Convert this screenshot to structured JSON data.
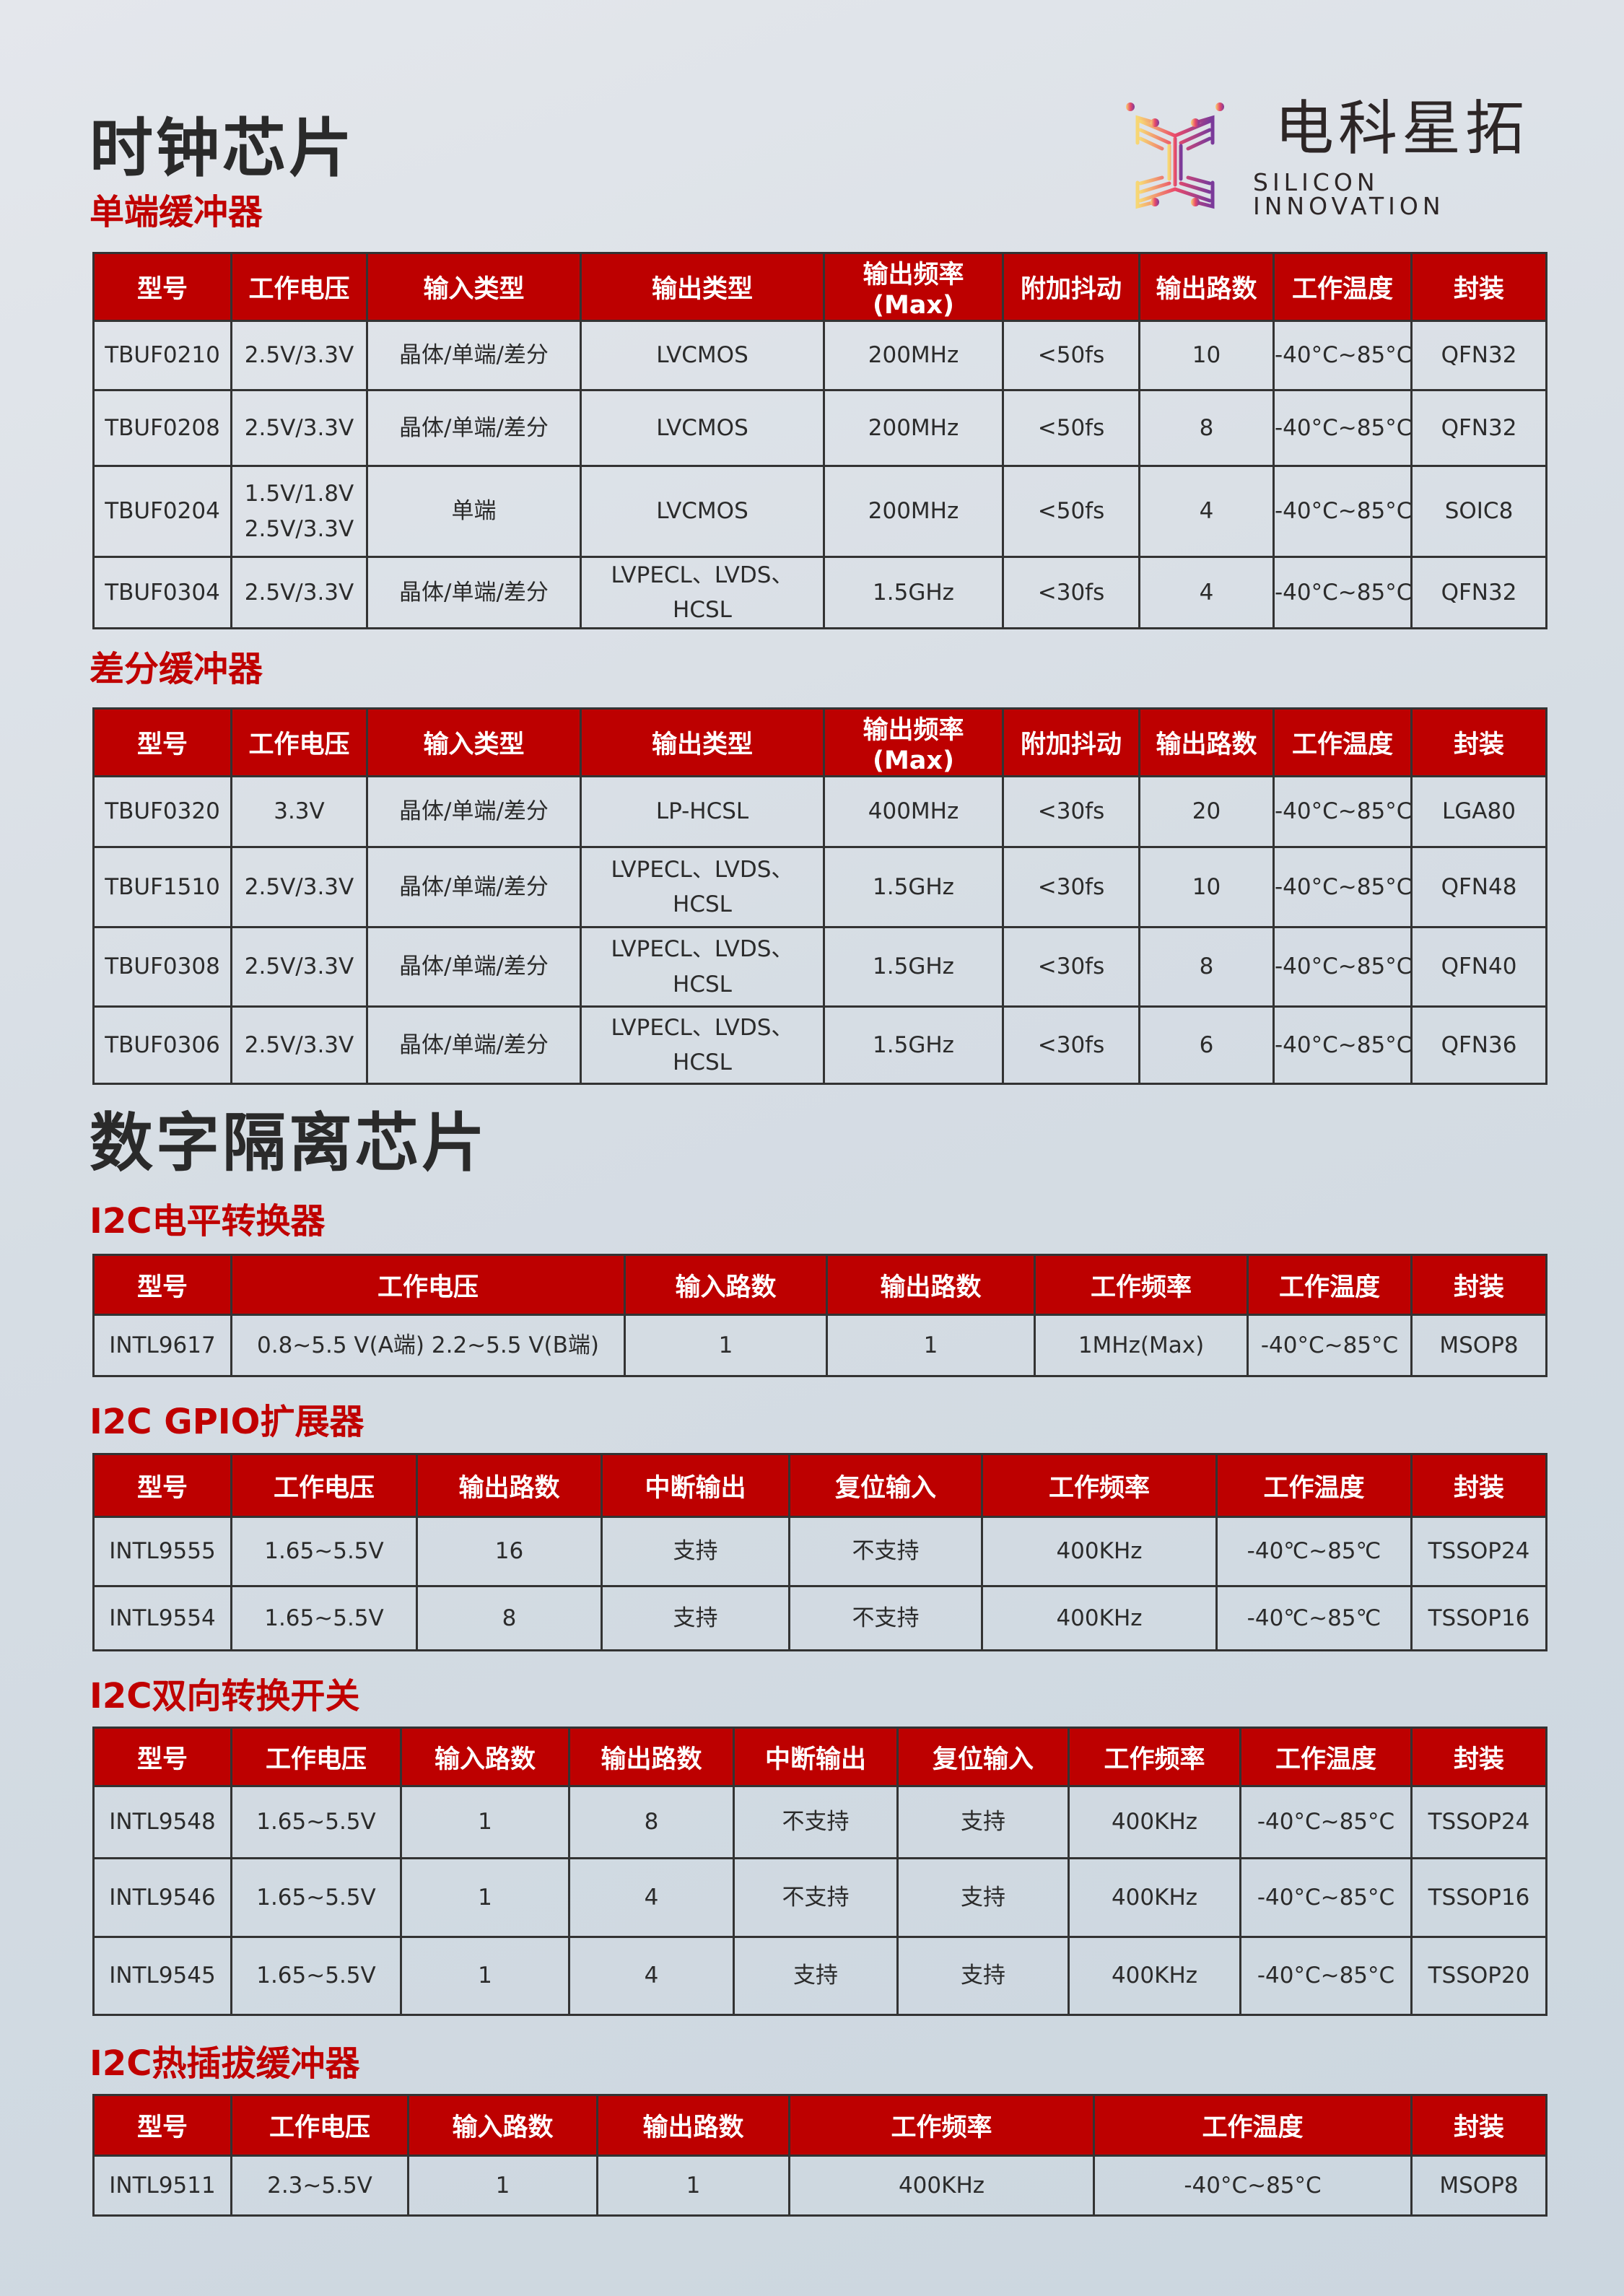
{
  "brand": {
    "name_cn": "电科星拓",
    "name_en": "SILICON INNOVATION",
    "gradient": [
      "#f7d774",
      "#ea4a6a",
      "#7a3a9a"
    ]
  },
  "colors": {
    "header_bg": "#bd0000",
    "section_title": "#c00000",
    "border": "#333333"
  },
  "sections": [
    {
      "title": "时钟芯片"
    },
    {
      "title": "数字隔离芯片"
    }
  ],
  "tables": [
    {
      "subtitle": "单端缓冲器",
      "headers": [
        "型号",
        "工作电压",
        "输入类型",
        "输出类型",
        "输出频率(Max)",
        "附加抖动",
        "输出路数",
        "工作温度",
        "封装"
      ],
      "rows": [
        [
          "TBUF0210",
          "2.5V/3.3V",
          "晶体/单端/差分",
          "LVCMOS",
          "200MHz",
          "<50fs",
          "10",
          "-40°C~85°C",
          "QFN32"
        ],
        [
          "TBUF0208",
          "2.5V/3.3V",
          "晶体/单端/差分",
          "LVCMOS",
          "200MHz",
          "<50fs",
          "8",
          "-40°C~85°C",
          "QFN32"
        ],
        [
          "TBUF0204",
          "1.5V/1.8V\n2.5V/3.3V",
          "单端",
          "LVCMOS",
          "200MHz",
          "<50fs",
          "4",
          "-40°C~85°C",
          "SOIC8"
        ],
        [
          "TBUF0304",
          "2.5V/3.3V",
          "晶体/单端/差分",
          "LVPECL、LVDS、HCSL",
          "1.5GHz",
          "<30fs",
          "4",
          "-40°C~85°C",
          "QFN32"
        ]
      ]
    },
    {
      "subtitle": "差分缓冲器",
      "headers": [
        "型号",
        "工作电压",
        "输入类型",
        "输出类型",
        "输出频率(Max)",
        "附加抖动",
        "输出路数",
        "工作温度",
        "封装"
      ],
      "rows": [
        [
          "TBUF0320",
          "3.3V",
          "晶体/单端/差分",
          "LP-HCSL",
          "400MHz",
          "<30fs",
          "20",
          "-40°C~85°C",
          "LGA80"
        ],
        [
          "TBUF1510",
          "2.5V/3.3V",
          "晶体/单端/差分",
          "LVPECL、LVDS、HCSL",
          "1.5GHz",
          "<30fs",
          "10",
          "-40°C~85°C",
          "QFN48"
        ],
        [
          "TBUF0308",
          "2.5V/3.3V",
          "晶体/单端/差分",
          "LVPECL、LVDS、HCSL",
          "1.5GHz",
          "<30fs",
          "8",
          "-40°C~85°C",
          "QFN40"
        ],
        [
          "TBUF0306",
          "2.5V/3.3V",
          "晶体/单端/差分",
          "LVPECL、LVDS、HCSL",
          "1.5GHz",
          "<30fs",
          "6",
          "-40°C~85°C",
          "QFN36"
        ]
      ]
    },
    {
      "subtitle": "I2C电平转换器",
      "headers": [
        "型号",
        "工作电压",
        "输入路数",
        "输出路数",
        "工作频率",
        "工作温度",
        "封装"
      ],
      "rows": [
        [
          "INTL9617",
          "0.8~5.5 V(A端)    2.2~5.5 V(B端)",
          "1",
          "1",
          "1MHz(Max)",
          "-40°C~85°C",
          "MSOP8"
        ]
      ]
    },
    {
      "subtitle": "I2C GPIO扩展器",
      "headers": [
        "型号",
        "工作电压",
        "输出路数",
        "中断输出",
        "复位输入",
        "工作频率",
        "工作温度",
        "封装"
      ],
      "rows": [
        [
          "INTL9555",
          "1.65~5.5V",
          "16",
          "支持",
          "不支持",
          "400KHz",
          "-40℃~85℃",
          "TSSOP24"
        ],
        [
          "INTL9554",
          "1.65~5.5V",
          "8",
          "支持",
          "不支持",
          "400KHz",
          "-40℃~85℃",
          "TSSOP16"
        ]
      ]
    },
    {
      "subtitle": "I2C双向转换开关",
      "headers": [
        "型号",
        "工作电压",
        "输入路数",
        "输出路数",
        "中断输出",
        "复位输入",
        "工作频率",
        "工作温度",
        "封装"
      ],
      "rows": [
        [
          "INTL9548",
          "1.65~5.5V",
          "1",
          "8",
          "不支持",
          "支持",
          "400KHz",
          "-40°C~85°C",
          "TSSOP24"
        ],
        [
          "INTL9546",
          "1.65~5.5V",
          "1",
          "4",
          "不支持",
          "支持",
          "400KHz",
          "-40°C~85°C",
          "TSSOP16"
        ],
        [
          "INTL9545",
          "1.65~5.5V",
          "1",
          "4",
          "支持",
          "支持",
          "400KHz",
          "-40°C~85°C",
          "TSSOP20"
        ]
      ]
    },
    {
      "subtitle": "I2C热插拔缓冲器",
      "headers": [
        "型号",
        "工作电压",
        "输入路数",
        "输出路数",
        "工作频率",
        "工作温度",
        "封装"
      ],
      "rows": [
        [
          "INTL9511",
          "2.3~5.5V",
          "1",
          "1",
          "400KHz",
          "-40°C~85°C",
          "MSOP8"
        ]
      ]
    }
  ]
}
